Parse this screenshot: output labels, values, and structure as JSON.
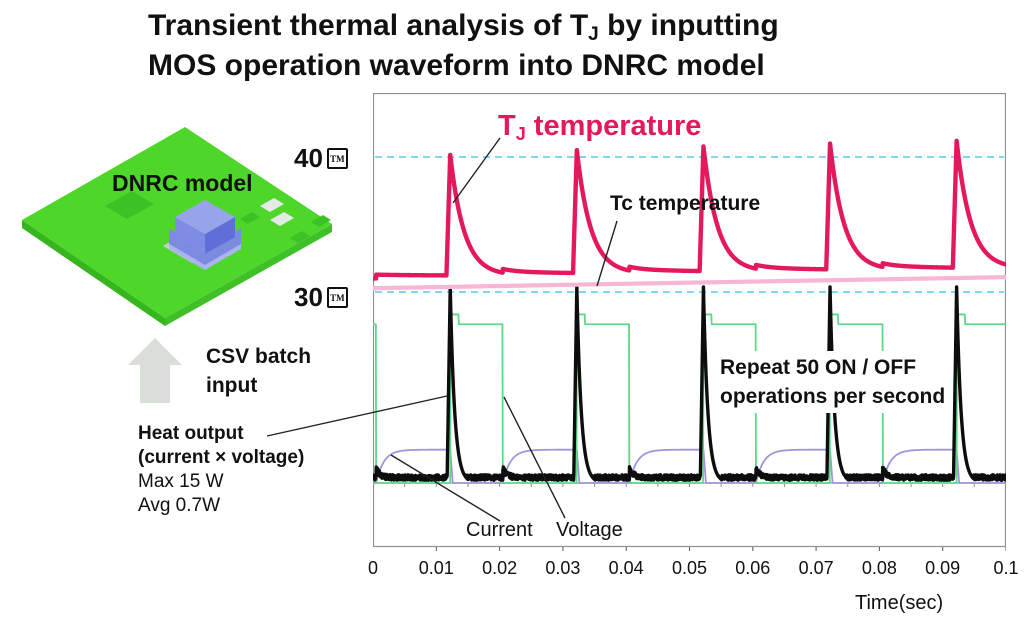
{
  "title": {
    "line1_pre": "Transient thermal analysis of T",
    "line1_sub": "J",
    "line1_post": " by inputting",
    "line2": "MOS operation waveform into DNRC model"
  },
  "model": {
    "board_label": "DNRC model"
  },
  "input_flow": {
    "line1": "CSV batch",
    "line2": "input"
  },
  "heat_note": {
    "line1": "Heat output",
    "line2": "(current × voltage)",
    "line3": "Max 15 W",
    "line4": "Avg 0.7W"
  },
  "annotations": {
    "tj_pre": "T",
    "tj_sub": "J",
    "tj_post": " temperature",
    "tc": "Tc temperature",
    "repeat_line1": "Repeat 50 ON / OFF",
    "repeat_line2": "operations per second",
    "current": "Current",
    "voltage": "Voltage"
  },
  "axes": {
    "y_ticks": [
      {
        "label": "40",
        "unit_glyph": "TM",
        "temp_c": 40
      },
      {
        "label": "30",
        "unit_glyph": "TM",
        "temp_c": 30
      }
    ],
    "x_tick_labels": [
      "0",
      "0.01",
      "0.02",
      "0.03",
      "0.04",
      "0.05",
      "0.06",
      "0.07",
      "0.08",
      "0.09",
      "0.1"
    ],
    "x_title": "Time(sec)"
  },
  "chart_data": {
    "type": "line",
    "x_range_s": [
      0,
      0.1
    ],
    "x_ticks": [
      0,
      0.01,
      0.02,
      0.03,
      0.04,
      0.05,
      0.06,
      0.07,
      0.08,
      0.09,
      0.1
    ],
    "x_label": "Time(sec)",
    "temperature_gridlines_c": [
      40,
      30
    ],
    "gridline_style": {
      "color": "#7fd8ee",
      "dashed": true
    },
    "switching": {
      "rate_per_second": 50,
      "period_s": 0.02,
      "cycles": 5,
      "first_on_s": 0.0122,
      "on_duration_s": 0.0083,
      "first_off_s": 0.0005
    },
    "series": [
      {
        "id": "tj",
        "label": "TJ temperature",
        "color": "#e4195c",
        "baseline_c": 31.0,
        "drift_c_per_s": 6,
        "peak_times_s": [
          0.0122,
          0.0322,
          0.0522,
          0.0722,
          0.0922
        ],
        "peaks_c": [
          40.0,
          40.3,
          40.55,
          40.75,
          40.95
        ],
        "rise_s": 0.0006,
        "decay_tau_s": 0.0022,
        "off_step_c": 0.28,
        "off_step_tau_s": 0.02
      },
      {
        "id": "tc",
        "label": "Tc temperature",
        "color": "#f7b6d6",
        "start_c": 30.28,
        "end_c": 31.1
      },
      {
        "id": "power",
        "label": "Heat output (current × voltage)",
        "color": "#0d0d0d",
        "max_w": 15,
        "avg_w": 0.7,
        "spike_rise_s": 0.0005,
        "spike_decay_tau_s": 0.0007,
        "noise_base": 0.028,
        "noise_amp": 0.014,
        "off_bump": 0.05,
        "off_bump_tau_s": 0.0006
      },
      {
        "id": "voltage",
        "label": "Voltage",
        "color": "#5cd985",
        "high_level": 0.81,
        "overshoot_level": 0.86,
        "overshoot_duration_s": 0.0013
      },
      {
        "id": "current",
        "label": "Current",
        "color": "#a193e0",
        "high_level": 0.17,
        "rise_tau_s": 0.0012,
        "fall_s": 0.0004
      }
    ]
  }
}
